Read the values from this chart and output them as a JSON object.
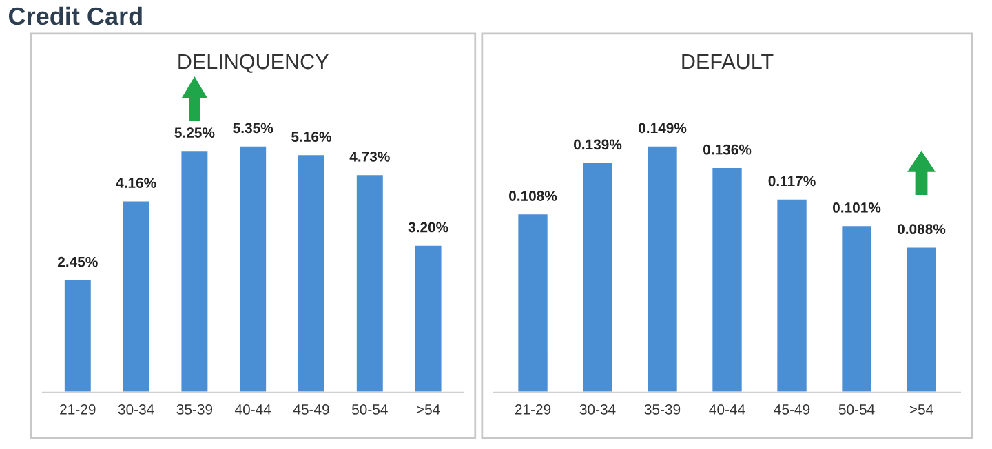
{
  "chart_data": [
    {
      "type": "bar",
      "title": "DELINQUENCY",
      "annotations": [
        "Credit Card"
      ],
      "categories": [
        "21-29",
        "30-34",
        "35-39",
        "40-44",
        "45-49",
        "50-54",
        ">54"
      ],
      "values": [
        2.45,
        4.16,
        5.25,
        5.35,
        5.16,
        4.73,
        3.2
      ],
      "value_labels": [
        "2.45%",
        "4.16%",
        "5.25%",
        "5.35%",
        "5.16%",
        "4.73%",
        "3.20%"
      ],
      "color": "#4a8fd4"
    },
    {
      "type": "bar",
      "title": "DEFAULT",
      "categories": [
        "21-29",
        "30-34",
        "35-39",
        "40-44",
        "45-49",
        "50-54",
        ">54"
      ],
      "values": [
        0.108,
        0.139,
        0.149,
        0.136,
        0.117,
        0.101,
        0.088
      ],
      "value_labels": [
        "0.108%",
        "0.139%",
        "0.149%",
        "0.136%",
        "0.117%",
        "0.101%",
        "0.088%"
      ],
      "color": "#4a8fd4"
    }
  ]
}
